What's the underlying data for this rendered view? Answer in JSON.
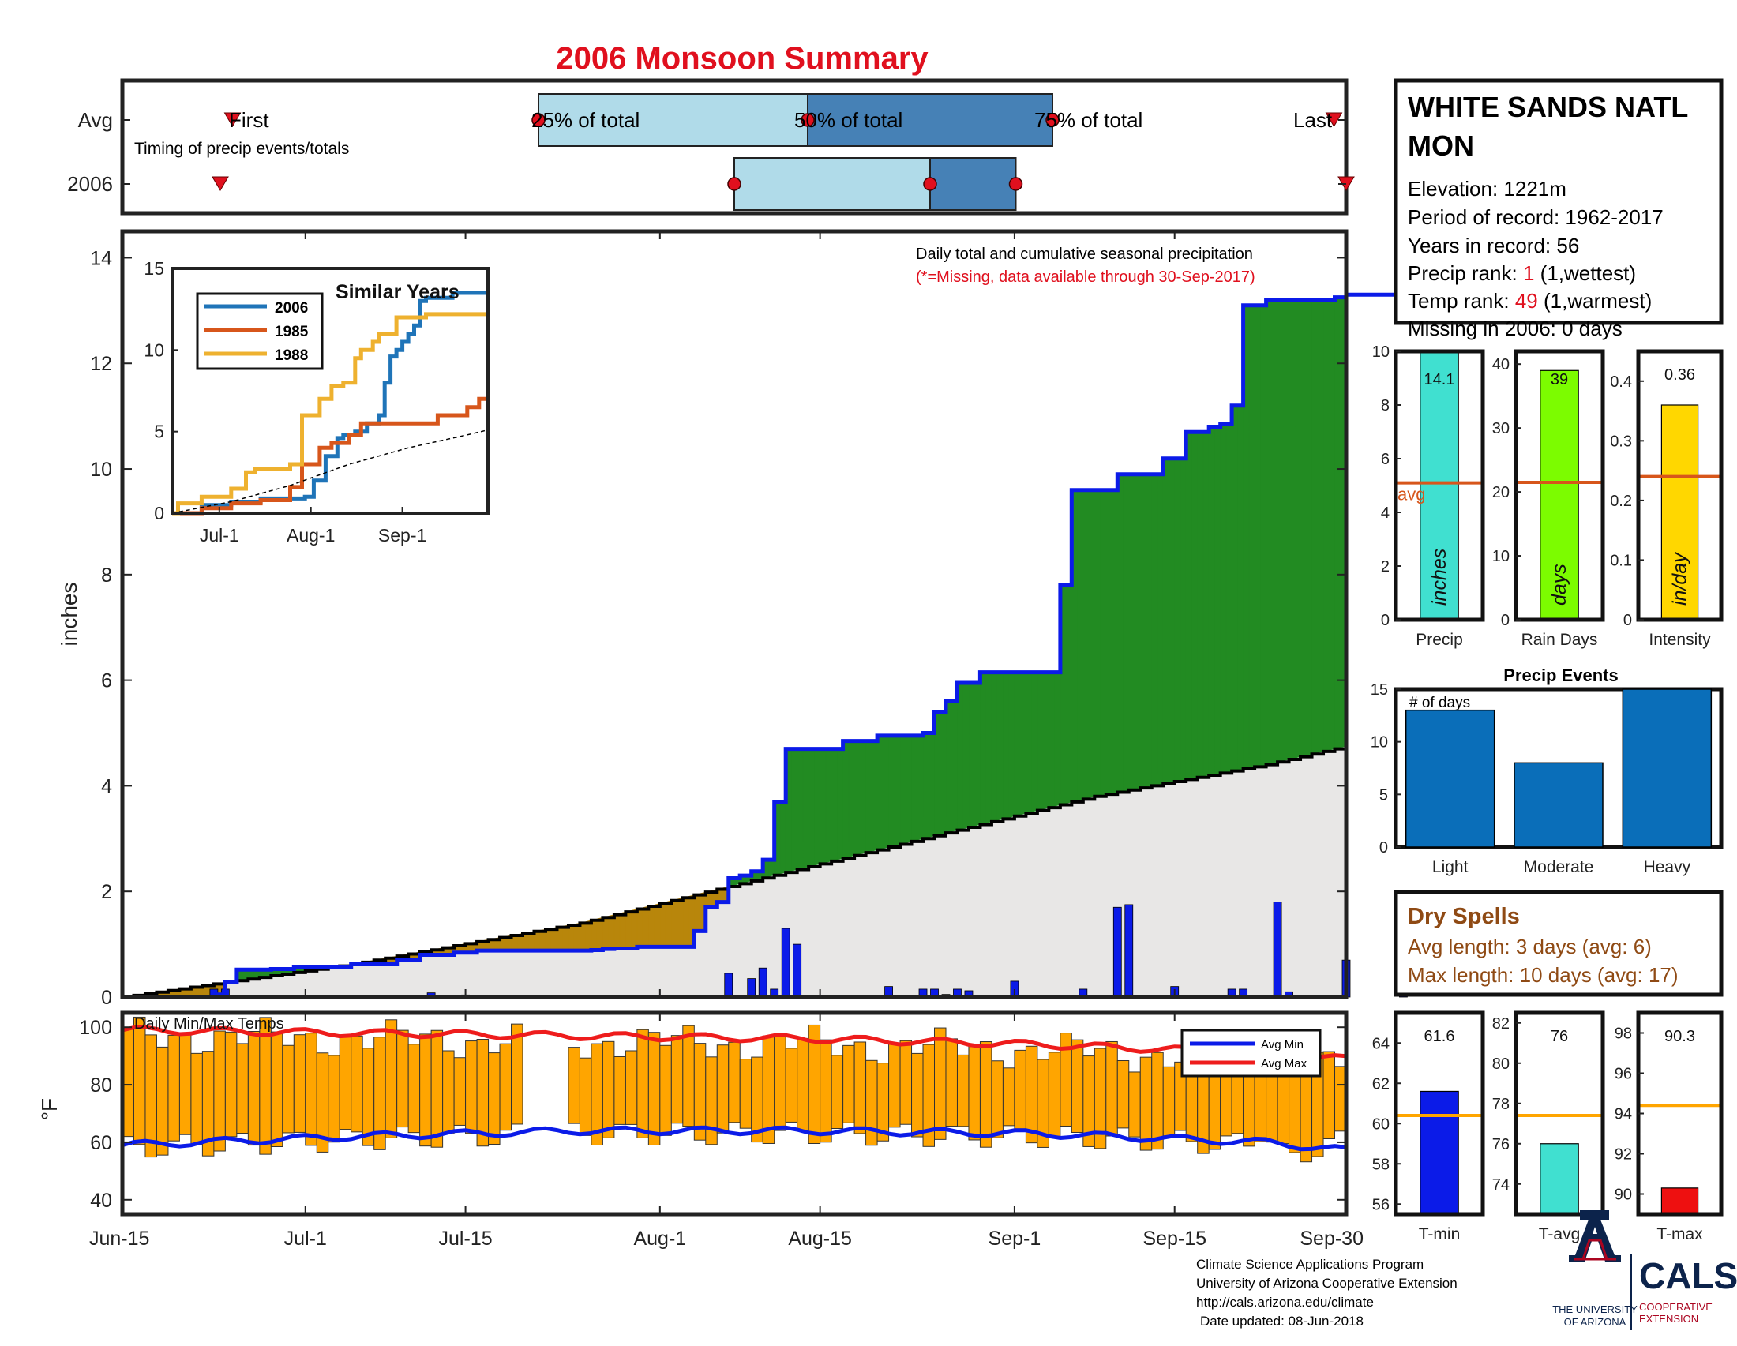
{
  "title": "2006 Monsoon Summary",
  "station": {
    "name_line1": "WHITE SANDS NATL",
    "name_line2": "MON",
    "elevation": "Elevation: 1221m",
    "period": "Period of record: 1962-2017",
    "years": "Years in record: 56",
    "precip_rank_label": "Precip rank:",
    "precip_rank_value": "1",
    "precip_rank_note": "(1,wettest)",
    "temp_rank_label": "Temp rank:",
    "temp_rank_value": "49",
    "temp_rank_note": "(1,warmest)",
    "missing": "Missing in 2006: 0 days"
  },
  "timing": {
    "row_labels": [
      "Avg",
      "2006"
    ],
    "caption": "Timing of precip events/totals",
    "first_label": "First",
    "last_label": "Last",
    "q25_label": "25% of total",
    "q50_label": "50% of total",
    "q75_label": "75% of total",
    "avg": {
      "first": 9,
      "q25": 34,
      "q50": 56,
      "q75": 76,
      "last": 99
    },
    "y2006": {
      "first": 8,
      "q25": 50,
      "q50": 66,
      "q75": 73,
      "last": 100
    }
  },
  "main": {
    "annotation1": "Daily total and cumulative seasonal precipitation",
    "annotation2": "(*=Missing, data available through 30-Sep-2017)",
    "ylabel": "inches",
    "yticks": [
      "0",
      "2",
      "4",
      "6",
      "8",
      "10",
      "12",
      "14"
    ]
  },
  "xticks": [
    "Jun-15",
    "Jul-1",
    "Jul-15",
    "Aug-1",
    "Aug-15",
    "Sep-1",
    "Sep-15",
    "Sep-30"
  ],
  "inset": {
    "title": "Similar Years",
    "legend": [
      "2006",
      "1985",
      "1988"
    ],
    "yticks": [
      "0",
      "5",
      "10",
      "15"
    ],
    "xticks": [
      "Jul-1",
      "Aug-1",
      "Sep-1"
    ]
  },
  "temps": {
    "caption": "Daily Min/Max Temps",
    "ylabel": "°F",
    "yticks": [
      "40",
      "60",
      "80",
      "100"
    ],
    "legend_min": "Avg Min",
    "legend_max": "Avg Max"
  },
  "summary_bars": {
    "precip_value": "14.1",
    "precip_unit": "inches",
    "precip_label": "Precip",
    "avg_label": "avg",
    "precip_ticks": [
      "0",
      "2",
      "4",
      "6",
      "8",
      "10"
    ],
    "days_value": "39",
    "days_unit": "days",
    "days_label": "Rain Days",
    "days_ticks": [
      "0",
      "10",
      "20",
      "30",
      "40"
    ],
    "intensity_value": "0.36",
    "intensity_unit": "in/day",
    "intensity_label": "Intensity",
    "intensity_ticks": [
      "0",
      "0.1",
      "0.2",
      "0.3",
      "0.4"
    ]
  },
  "events": {
    "title": "Precip Events",
    "ylabel_note": "# of days",
    "yticks": [
      "0",
      "5",
      "10",
      "15"
    ],
    "categories": [
      "Light",
      "Moderate",
      "Heavy"
    ]
  },
  "dry": {
    "title": "Dry Spells",
    "avg_line": "Avg length: 3 days (avg: 6)",
    "max_line": "Max length: 10 days (avg: 17)"
  },
  "temp_bars": {
    "tmin_value": "61.6",
    "tmin_label": "T-min",
    "tmin_ticks": [
      "56",
      "58",
      "60",
      "62",
      "64"
    ],
    "tavg_value": "76",
    "tavg_label": "T-avg",
    "tavg_ticks": [
      "74",
      "76",
      "78",
      "80",
      "82"
    ],
    "tmax_value": "90.3",
    "tmax_label": "T-max",
    "tmax_ticks": [
      "90",
      "92",
      "94",
      "96",
      "98"
    ]
  },
  "footer": {
    "line1": "Climate Science Applications Program",
    "line2": "University of Arizona Cooperative Extension",
    "line3": "http://cals.arizona.edu/climate",
    "line4": "Date updated: 08-Jun-2018",
    "ua_line1": "THE UNIVERSITY",
    "ua_line2": "OF ARIZONA",
    "cals": "CALS",
    "cals_sub1": "COOPERATIVE",
    "cals_sub2": "EXTENSION"
  },
  "chart_data": [
    {
      "type": "area",
      "title": "Daily total and cumulative seasonal precipitation",
      "xlabel": "",
      "ylabel": "inches",
      "ylim": [
        0,
        14.5
      ],
      "x_range": [
        "Jun-15",
        "Sep-30"
      ],
      "cumulative_2006": [
        [
          0,
          0
        ],
        [
          8,
          0.05
        ],
        [
          9,
          0.28
        ],
        [
          10,
          0.52
        ],
        [
          13,
          0.53
        ],
        [
          15,
          0.56
        ],
        [
          20,
          0.62
        ],
        [
          24,
          0.7
        ],
        [
          26,
          0.8
        ],
        [
          29,
          0.84
        ],
        [
          31,
          0.88
        ],
        [
          38,
          0.88
        ],
        [
          41,
          0.89
        ],
        [
          42,
          0.91
        ],
        [
          43,
          0.92
        ],
        [
          44,
          0.92
        ],
        [
          45,
          0.95
        ],
        [
          50,
          1.25
        ],
        [
          51,
          1.7
        ],
        [
          52,
          1.8
        ],
        [
          53,
          2.25
        ],
        [
          54,
          2.3
        ],
        [
          55,
          2.38
        ],
        [
          56,
          2.6
        ],
        [
          57,
          3.7
        ],
        [
          58,
          4.7
        ],
        [
          63,
          4.85
        ],
        [
          66,
          4.95
        ],
        [
          70,
          5.0
        ],
        [
          71,
          5.4
        ],
        [
          72,
          5.6
        ],
        [
          73,
          5.95
        ],
        [
          75,
          6.15
        ],
        [
          81,
          6.15
        ],
        [
          82,
          7.8
        ],
        [
          83,
          9.6
        ],
        [
          87,
          9.9
        ],
        [
          91,
          10.2
        ],
        [
          93,
          10.7
        ],
        [
          95,
          10.8
        ],
        [
          96,
          10.85
        ],
        [
          97,
          11.2
        ],
        [
          98,
          13.1
        ],
        [
          99,
          13.1
        ],
        [
          100,
          13.2
        ],
        [
          106,
          13.25
        ],
        [
          107,
          13.3
        ],
        [
          113,
          13.4
        ],
        [
          114,
          14.1
        ],
        [
          115,
          14.1
        ],
        [
          120,
          14.1
        ]
      ],
      "cumulative_avg": [
        [
          0,
          0
        ],
        [
          20,
          0.62
        ],
        [
          40,
          1.4
        ],
        [
          55,
          2.2
        ],
        [
          70,
          3.0
        ],
        [
          85,
          3.8
        ],
        [
          100,
          4.4
        ],
        [
          108,
          4.8
        ],
        [
          120,
          5.1
        ]
      ],
      "daily_2006": [
        [
          8,
          0.15
        ],
        [
          9,
          0.15
        ],
        [
          14,
          0.01
        ],
        [
          24,
          0.02
        ],
        [
          27,
          0.08
        ],
        [
          30,
          0.04
        ],
        [
          53,
          0.45
        ],
        [
          55,
          0.35
        ],
        [
          56,
          0.55
        ],
        [
          57,
          0.15
        ],
        [
          58,
          1.3
        ],
        [
          59,
          1.0
        ],
        [
          67,
          0.2
        ],
        [
          70,
          0.15
        ],
        [
          71,
          0.15
        ],
        [
          72,
          0.05
        ],
        [
          73,
          0.15
        ],
        [
          74,
          0.12
        ],
        [
          78,
          0.3
        ],
        [
          84,
          0.15
        ],
        [
          87,
          1.7
        ],
        [
          88,
          1.75
        ],
        [
          92,
          0.2
        ],
        [
          97,
          0.15
        ],
        [
          98,
          0.15
        ],
        [
          101,
          1.8
        ],
        [
          102,
          0.1
        ],
        [
          107,
          0.7
        ],
        [
          112,
          0.1
        ]
      ]
    },
    {
      "type": "line",
      "title": "Similar Years",
      "ylim": [
        0,
        15
      ],
      "xticks": [
        "Jul-1",
        "Aug-1",
        "Sep-1"
      ],
      "series": [
        {
          "name": "2006",
          "values": [
            [
              0,
              0
            ],
            [
              10,
              0.5
            ],
            [
              20,
              0.7
            ],
            [
              30,
              0.9
            ],
            [
              45,
              1.0
            ],
            [
              48,
              2.0
            ],
            [
              52,
              3.5
            ],
            [
              56,
              4.6
            ],
            [
              58,
              4.8
            ],
            [
              62,
              5.0
            ],
            [
              66,
              5.5
            ],
            [
              70,
              6.0
            ],
            [
              72,
              8.0
            ],
            [
              74,
              9.6
            ],
            [
              76,
              10.0
            ],
            [
              78,
              10.5
            ],
            [
              80,
              11.0
            ],
            [
              82,
              11.5
            ],
            [
              84,
              13.0
            ],
            [
              86,
              13.2
            ],
            [
              95,
              13.5
            ],
            [
              107,
              13.6
            ]
          ]
        },
        {
          "name": "1985",
          "values": [
            [
              0,
              0
            ],
            [
              10,
              0.3
            ],
            [
              20,
              0.6
            ],
            [
              30,
              0.8
            ],
            [
              40,
              1.6
            ],
            [
              44,
              3.0
            ],
            [
              50,
              4.0
            ],
            [
              54,
              4.3
            ],
            [
              60,
              4.8
            ],
            [
              64,
              5.5
            ],
            [
              80,
              5.5
            ],
            [
              90,
              6.0
            ],
            [
              100,
              6.5
            ],
            [
              104,
              7.0
            ],
            [
              107,
              7.2
            ]
          ]
        },
        {
          "name": "1988",
          "values": [
            [
              0,
              0
            ],
            [
              2,
              0.6
            ],
            [
              10,
              1.0
            ],
            [
              20,
              1.5
            ],
            [
              25,
              2.5
            ],
            [
              28,
              2.7
            ],
            [
              40,
              3.0
            ],
            [
              44,
              6.0
            ],
            [
              50,
              7.0
            ],
            [
              54,
              7.8
            ],
            [
              58,
              8.0
            ],
            [
              62,
              9.5
            ],
            [
              64,
              10.0
            ],
            [
              68,
              10.5
            ],
            [
              70,
              11.0
            ],
            [
              76,
              12.0
            ],
            [
              86,
              12.2
            ],
            [
              100,
              12.2
            ],
            [
              107,
              12.8
            ]
          ]
        },
        {
          "values": [
            [
              0,
              0
            ],
            [
              20,
              0.7
            ],
            [
              40,
              1.7
            ],
            [
              60,
              3.0
            ],
            [
              80,
              4.0
            ],
            [
              100,
              4.8
            ],
            [
              107,
              5.1
            ]
          ]
        }
      ]
    },
    {
      "type": "bar",
      "title": "Daily Min/Max Temps",
      "ylabel": "°F",
      "ylim": [
        35,
        105
      ],
      "avg_min": [
        [
          0,
          59
        ],
        [
          20,
          62
        ],
        [
          40,
          64
        ],
        [
          60,
          64
        ],
        [
          80,
          63
        ],
        [
          100,
          60
        ],
        [
          110,
          56
        ],
        [
          120,
          49
        ]
      ],
      "avg_max": [
        [
          0,
          99
        ],
        [
          20,
          98
        ],
        [
          40,
          97
        ],
        [
          60,
          96
        ],
        [
          80,
          94
        ],
        [
          100,
          91
        ],
        [
          110,
          88
        ],
        [
          120,
          84
        ]
      ]
    },
    {
      "type": "bar",
      "categories": [
        "Precip",
        "Rain Days",
        "Intensity"
      ],
      "values": [
        14.1,
        39,
        0.36
      ],
      "averages": [
        5.1,
        21.5,
        0.24
      ],
      "ylims": [
        [
          0,
          10
        ],
        [
          0,
          42
        ],
        [
          0,
          0.45
        ]
      ]
    },
    {
      "type": "bar",
      "title": "Precip Events",
      "categories": [
        "Light",
        "Moderate",
        "Heavy"
      ],
      "values": [
        13,
        8,
        15
      ],
      "ylim": [
        0,
        15
      ]
    },
    {
      "type": "bar",
      "categories": [
        "T-min",
        "T-avg",
        "T-max"
      ],
      "values": [
        61.6,
        76,
        90.3
      ],
      "averages": [
        60.4,
        77.4,
        94.4
      ],
      "ylims": [
        [
          55.5,
          65.5
        ],
        [
          72.5,
          82.5
        ],
        [
          89,
          99
        ]
      ]
    }
  ]
}
